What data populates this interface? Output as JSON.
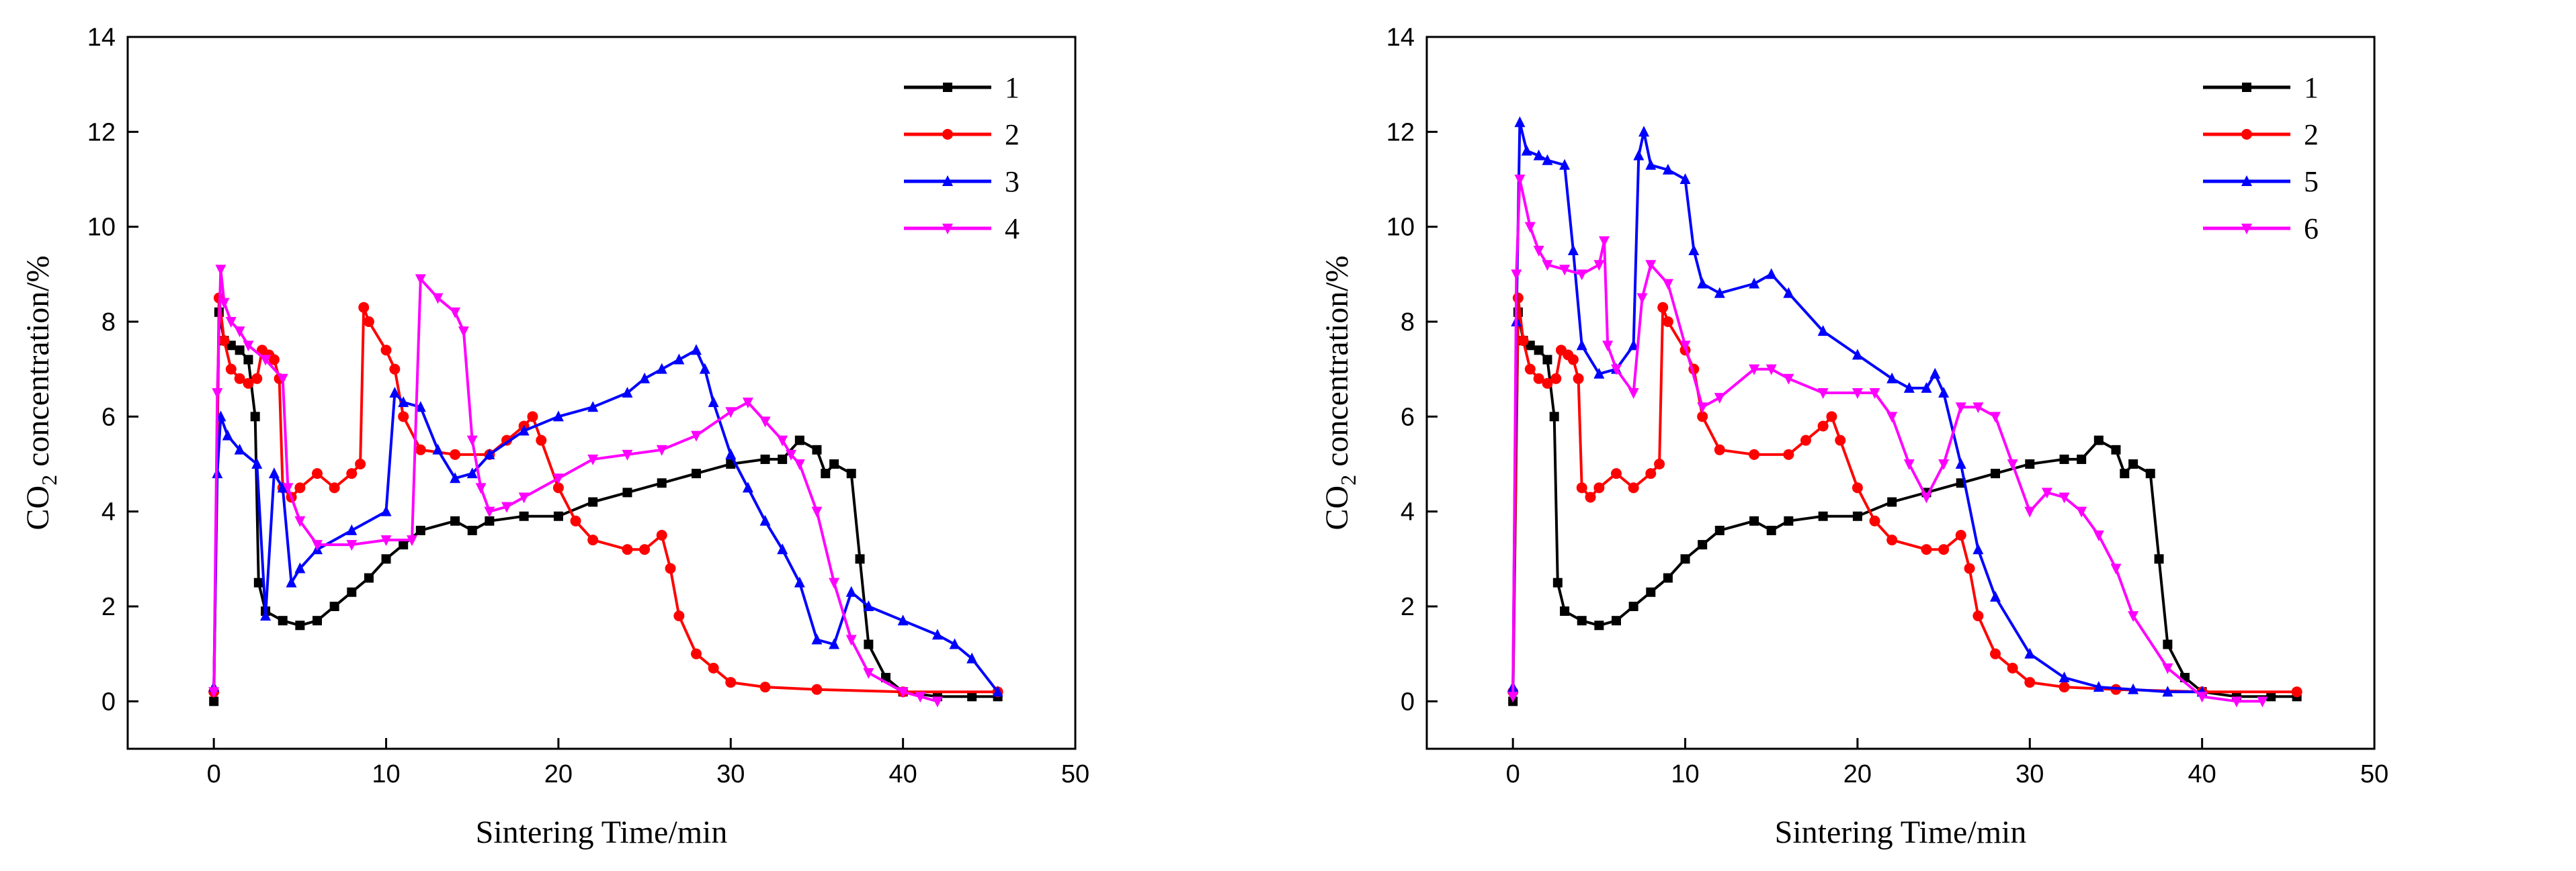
{
  "chart_data": [
    {
      "type": "line",
      "xlabel": "Sintering Time/min",
      "ylabel_prefix": "CO",
      "ylabel_subscript": "2",
      "ylabel_suffix": " concentration/%",
      "xlim": [
        -5,
        50
      ],
      "ylim": [
        -1,
        14
      ],
      "xticks": [
        0,
        10,
        20,
        30,
        40,
        50
      ],
      "yticks": [
        0,
        2,
        4,
        6,
        8,
        10,
        12,
        14
      ],
      "legend_position": "top-right",
      "series": [
        {
          "name": "1",
          "color": "#000000",
          "marker": "square",
          "x": [
            0,
            0.3,
            0.6,
            1.0,
            1.5,
            2.0,
            2.4,
            2.6,
            3.0,
            4.0,
            5.0,
            6.0,
            7.0,
            8.0,
            9.0,
            10.0,
            11.0,
            12.0,
            14.0,
            15.0,
            16.0,
            18.0,
            20.0,
            22.0,
            24.0,
            26.0,
            28.0,
            30.0,
            32.0,
            33.0,
            34.0,
            35.0,
            35.5,
            36.0,
            37.0,
            37.5,
            38.0,
            39.0,
            40.0,
            42.0,
            44.0,
            45.5
          ],
          "y": [
            0,
            8.2,
            7.6,
            7.5,
            7.4,
            7.2,
            6.0,
            2.5,
            1.9,
            1.7,
            1.6,
            1.7,
            2.0,
            2.3,
            2.6,
            3.0,
            3.3,
            3.6,
            3.8,
            3.6,
            3.8,
            3.9,
            3.9,
            4.2,
            4.4,
            4.6,
            4.8,
            5.0,
            5.1,
            5.1,
            5.5,
            5.3,
            4.8,
            5.0,
            4.8,
            3.0,
            1.2,
            0.5,
            0.2,
            0.1,
            0.1,
            0.1
          ]
        },
        {
          "name": "2",
          "color": "#ff0000",
          "marker": "circle",
          "x": [
            0,
            0.3,
            0.6,
            1.0,
            1.5,
            2.0,
            2.5,
            2.8,
            3.2,
            3.5,
            3.8,
            4.0,
            4.5,
            5.0,
            6.0,
            7.0,
            8.0,
            8.5,
            8.7,
            9.0,
            10.0,
            10.5,
            11.0,
            12.0,
            14.0,
            16.0,
            17.0,
            18.0,
            18.5,
            19.0,
            20.0,
            21.0,
            22.0,
            24.0,
            25.0,
            26.0,
            26.5,
            27.0,
            28.0,
            29.0,
            30.0,
            32.0,
            35.0,
            40.0,
            45.5
          ],
          "y": [
            0.2,
            8.5,
            7.6,
            7.0,
            6.8,
            6.7,
            6.8,
            7.4,
            7.3,
            7.2,
            6.8,
            4.5,
            4.3,
            4.5,
            4.8,
            4.5,
            4.8,
            5.0,
            8.3,
            8.0,
            7.4,
            7.0,
            6.0,
            5.3,
            5.2,
            5.2,
            5.5,
            5.8,
            6.0,
            5.5,
            4.5,
            3.8,
            3.4,
            3.2,
            3.2,
            3.5,
            2.8,
            1.8,
            1.0,
            0.7,
            0.4,
            0.3,
            0.25,
            0.2,
            0.2
          ]
        },
        {
          "name": "3",
          "color": "#0000ff",
          "marker": "triangle-up",
          "x": [
            0,
            0.2,
            0.4,
            0.8,
            1.5,
            2.5,
            3.0,
            3.5,
            4.0,
            4.5,
            5.0,
            6.0,
            8.0,
            10.0,
            10.5,
            11.0,
            12.0,
            13.0,
            14.0,
            15.0,
            16.0,
            18.0,
            20.0,
            22.0,
            24.0,
            25.0,
            26.0,
            27.0,
            28.0,
            28.5,
            29.0,
            30.0,
            31.0,
            32.0,
            33.0,
            34.0,
            35.0,
            36.0,
            37.0,
            38.0,
            40.0,
            42.0,
            43.0,
            44.0,
            45.5
          ],
          "y": [
            0.3,
            4.8,
            6.0,
            5.6,
            5.3,
            5.0,
            1.8,
            4.8,
            4.5,
            2.5,
            2.8,
            3.2,
            3.6,
            4.0,
            6.5,
            6.3,
            6.2,
            5.3,
            4.7,
            4.8,
            5.2,
            5.7,
            6.0,
            6.2,
            6.5,
            6.8,
            7.0,
            7.2,
            7.4,
            7.0,
            6.3,
            5.2,
            4.5,
            3.8,
            3.2,
            2.5,
            1.3,
            1.2,
            2.3,
            2.0,
            1.7,
            1.4,
            1.2,
            0.9,
            0.2
          ]
        },
        {
          "name": "4",
          "color": "#ff00ff",
          "marker": "triangle-down",
          "x": [
            0,
            0.2,
            0.4,
            0.6,
            1.0,
            1.5,
            2.0,
            3.0,
            4.0,
            4.3,
            5.0,
            6.0,
            8.0,
            10.0,
            11.5,
            12.0,
            13.0,
            14.0,
            14.5,
            15.0,
            15.5,
            16.0,
            17.0,
            18.0,
            20.0,
            22.0,
            24.0,
            26.0,
            28.0,
            30.0,
            31.0,
            32.0,
            33.0,
            33.5,
            34.0,
            35.0,
            36.0,
            37.0,
            38.0,
            40.0,
            41.0,
            42.0
          ],
          "y": [
            0.2,
            6.5,
            9.1,
            8.4,
            8.0,
            7.8,
            7.5,
            7.2,
            6.8,
            4.5,
            3.8,
            3.3,
            3.3,
            3.4,
            3.4,
            8.9,
            8.5,
            8.2,
            7.8,
            5.5,
            4.5,
            4.0,
            4.1,
            4.3,
            4.7,
            5.1,
            5.2,
            5.3,
            5.6,
            6.1,
            6.3,
            5.9,
            5.5,
            5.2,
            5.0,
            4.0,
            2.5,
            1.3,
            0.6,
            0.2,
            0.1,
            0.0
          ]
        }
      ]
    },
    {
      "type": "line",
      "xlabel": "Sintering Time/min",
      "ylabel_prefix": "CO",
      "ylabel_subscript": "2",
      "ylabel_suffix": " concentration/%",
      "xlim": [
        -5,
        50
      ],
      "ylim": [
        -1,
        14
      ],
      "xticks": [
        0,
        10,
        20,
        30,
        40,
        50
      ],
      "yticks": [
        0,
        2,
        4,
        6,
        8,
        10,
        12,
        14
      ],
      "legend_position": "top-right",
      "series": [
        {
          "name": "1",
          "color": "#000000",
          "marker": "square",
          "x": [
            0,
            0.3,
            0.6,
            1.0,
            1.5,
            2.0,
            2.4,
            2.6,
            3.0,
            4.0,
            5.0,
            6.0,
            7.0,
            8.0,
            9.0,
            10.0,
            11.0,
            12.0,
            14.0,
            15.0,
            16.0,
            18.0,
            20.0,
            22.0,
            24.0,
            26.0,
            28.0,
            30.0,
            32.0,
            33.0,
            34.0,
            35.0,
            35.5,
            36.0,
            37.0,
            37.5,
            38.0,
            39.0,
            40.0,
            42.0,
            44.0,
            45.5
          ],
          "y": [
            0,
            8.2,
            7.6,
            7.5,
            7.4,
            7.2,
            6.0,
            2.5,
            1.9,
            1.7,
            1.6,
            1.7,
            2.0,
            2.3,
            2.6,
            3.0,
            3.3,
            3.6,
            3.8,
            3.6,
            3.8,
            3.9,
            3.9,
            4.2,
            4.4,
            4.6,
            4.8,
            5.0,
            5.1,
            5.1,
            5.5,
            5.3,
            4.8,
            5.0,
            4.8,
            3.0,
            1.2,
            0.5,
            0.2,
            0.1,
            0.1,
            0.1
          ]
        },
        {
          "name": "2",
          "color": "#ff0000",
          "marker": "circle",
          "x": [
            0,
            0.3,
            0.6,
            1.0,
            1.5,
            2.0,
            2.5,
            2.8,
            3.2,
            3.5,
            3.8,
            4.0,
            4.5,
            5.0,
            6.0,
            7.0,
            8.0,
            8.5,
            8.7,
            9.0,
            10.0,
            10.5,
            11.0,
            12.0,
            14.0,
            16.0,
            17.0,
            18.0,
            18.5,
            19.0,
            20.0,
            21.0,
            22.0,
            24.0,
            25.0,
            26.0,
            26.5,
            27.0,
            28.0,
            29.0,
            30.0,
            32.0,
            35.0,
            40.0,
            45.5
          ],
          "y": [
            0.2,
            8.5,
            7.6,
            7.0,
            6.8,
            6.7,
            6.8,
            7.4,
            7.3,
            7.2,
            6.8,
            4.5,
            4.3,
            4.5,
            4.8,
            4.5,
            4.8,
            5.0,
            8.3,
            8.0,
            7.4,
            7.0,
            6.0,
            5.3,
            5.2,
            5.2,
            5.5,
            5.8,
            6.0,
            5.5,
            4.5,
            3.8,
            3.4,
            3.2,
            3.2,
            3.5,
            2.8,
            1.8,
            1.0,
            0.7,
            0.4,
            0.3,
            0.25,
            0.2,
            0.2
          ]
        },
        {
          "name": "5",
          "color": "#0000ff",
          "marker": "triangle-up",
          "x": [
            0,
            0.2,
            0.4,
            0.8,
            1.5,
            2.0,
            3.0,
            3.5,
            4.0,
            5.0,
            6.0,
            7.0,
            7.3,
            7.6,
            8.0,
            9.0,
            10.0,
            10.5,
            11.0,
            12.0,
            14.0,
            15.0,
            16.0,
            18.0,
            20.0,
            22.0,
            23.0,
            24.0,
            24.5,
            25.0,
            26.0,
            27.0,
            28.0,
            30.0,
            32.0,
            34.0,
            36.0,
            38.0,
            40.0
          ],
          "y": [
            0.3,
            8.0,
            12.2,
            11.6,
            11.5,
            11.4,
            11.3,
            9.5,
            7.5,
            6.9,
            7.0,
            7.5,
            11.5,
            12.0,
            11.3,
            11.2,
            11.0,
            9.5,
            8.8,
            8.6,
            8.8,
            9.0,
            8.6,
            7.8,
            7.3,
            6.8,
            6.6,
            6.6,
            6.9,
            6.5,
            5.0,
            3.2,
            2.2,
            1.0,
            0.5,
            0.3,
            0.25,
            0.2,
            0.2
          ]
        },
        {
          "name": "6",
          "color": "#ff00ff",
          "marker": "triangle-down",
          "x": [
            0,
            0.2,
            0.4,
            1.0,
            1.5,
            2.0,
            3.0,
            4.0,
            5.0,
            5.3,
            5.5,
            6.0,
            7.0,
            7.5,
            8.0,
            9.0,
            10.0,
            11.0,
            12.0,
            14.0,
            15.0,
            16.0,
            18.0,
            20.0,
            21.0,
            22.0,
            23.0,
            24.0,
            25.0,
            26.0,
            27.0,
            28.0,
            29.0,
            30.0,
            31.0,
            32.0,
            33.0,
            34.0,
            35.0,
            36.0,
            38.0,
            40.0,
            42.0,
            43.5
          ],
          "y": [
            0.1,
            9.0,
            11.0,
            10.0,
            9.5,
            9.2,
            9.1,
            9.0,
            9.2,
            9.7,
            7.5,
            7.0,
            6.5,
            8.5,
            9.2,
            8.8,
            7.5,
            6.2,
            6.4,
            7.0,
            7.0,
            6.8,
            6.5,
            6.5,
            6.5,
            6.0,
            5.0,
            4.3,
            5.0,
            6.2,
            6.2,
            6.0,
            5.0,
            4.0,
            4.4,
            4.3,
            4.0,
            3.5,
            2.8,
            1.8,
            0.7,
            0.1,
            0.0,
            0.0
          ]
        }
      ]
    }
  ]
}
